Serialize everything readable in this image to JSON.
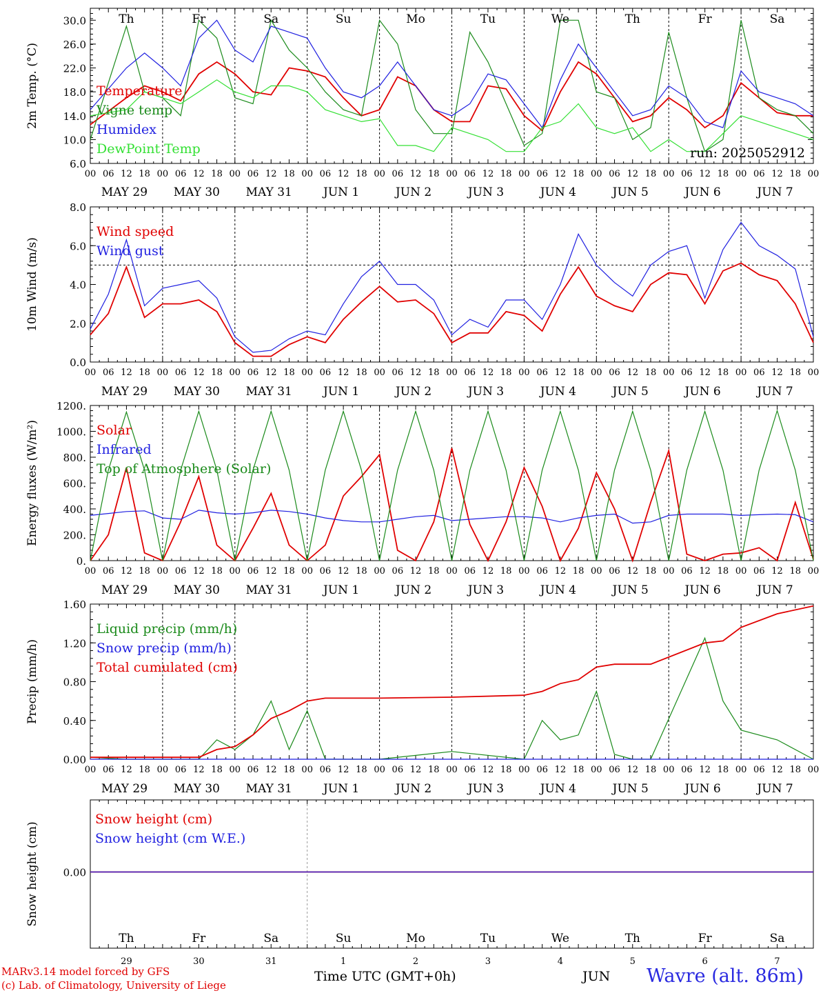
{
  "run_label": "run: 2025052912",
  "days": [
    "Th",
    "Fr",
    "Sa",
    "Su",
    "Mo",
    "Tu",
    "We",
    "Th",
    "Fr",
    "Sa"
  ],
  "weekend_days": [
    2,
    3,
    9
  ],
  "date_labels": [
    "MAY 29",
    "MAY 30",
    "MAY 31",
    "JUN  1",
    "JUN  2",
    "JUN  3",
    "JUN  4",
    "JUN  5",
    "JUN  6",
    "JUN  7"
  ],
  "hour_labels": [
    "00",
    "06",
    "12",
    "18"
  ],
  "day_numbers": [
    "29",
    "30",
    "31",
    "1",
    "2",
    "3",
    "4",
    "5",
    "6",
    "7"
  ],
  "month_label": "JUN",
  "x_axis_title": "Time UTC (GMT+0h)",
  "credits": {
    "line1": "MARv3.14 model forced by GFS",
    "line2": "(c) Lab. of Climatology, University of Liege"
  },
  "station": "Wavre (alt. 86m)",
  "colors": {
    "red": "#e00000",
    "green": "#1a8a1a",
    "blue": "#1f1fe0",
    "lightgreen": "#33e033"
  },
  "chart_data": [
    {
      "type": "line",
      "ylabel": "2m Temp. (°C)",
      "ylim": [
        6,
        32
      ],
      "yticks": [
        "30.0",
        "26.0",
        "22.0",
        "18.0",
        "14.0",
        "10.0",
        "6.0"
      ],
      "ytick_values": [
        30,
        26,
        22,
        18,
        14,
        10,
        6
      ],
      "x_hours": [
        0,
        12,
        18,
        24,
        30,
        36,
        42,
        48,
        54,
        60,
        66,
        72,
        78,
        84,
        90,
        96,
        102,
        108,
        114,
        120,
        126,
        132,
        138,
        144,
        150,
        156,
        162,
        168,
        174,
        180,
        186,
        192,
        198,
        204,
        210,
        216,
        222,
        228,
        234,
        240
      ],
      "series": [
        {
          "name": "Temperature",
          "color": "red",
          "values": [
            12.5,
            17,
            19,
            18,
            16.5,
            21,
            23,
            21,
            18,
            17.5,
            22,
            21.5,
            20.5,
            17,
            14,
            15,
            20.5,
            19,
            15,
            13,
            13,
            19,
            18.5,
            14,
            11.5,
            18,
            23,
            21,
            17,
            13,
            14,
            17,
            15,
            12,
            14,
            19.5,
            17,
            14.5,
            14,
            14
          ]
        },
        {
          "name": "Vigne temp",
          "color": "green",
          "values": [
            10,
            29,
            18,
            17,
            14,
            30,
            27,
            17,
            16,
            30,
            25,
            22,
            18,
            15,
            14,
            30,
            26,
            15,
            11,
            11,
            28,
            23,
            16,
            9,
            11,
            30,
            30,
            18,
            17,
            10,
            12,
            28,
            17,
            8,
            10,
            30,
            17,
            15,
            14,
            11
          ]
        },
        {
          "name": "Humidex",
          "color": "blue",
          "values": [
            15,
            22,
            24.5,
            22,
            19,
            27,
            30,
            25,
            23,
            29,
            28,
            27,
            22,
            18,
            17,
            19,
            23,
            19,
            15,
            14,
            16,
            21,
            20,
            16,
            12,
            20,
            26,
            22,
            18,
            14,
            15,
            19,
            17,
            13,
            12,
            21.5,
            18,
            17,
            16,
            14
          ]
        },
        {
          "name": "DewPoint Temp",
          "color": "lightgreen",
          "values": [
            14,
            15,
            18,
            17,
            16,
            18,
            20,
            18,
            17,
            19,
            19,
            18,
            15,
            14,
            13,
            13.5,
            9,
            9,
            8,
            12,
            11,
            10,
            8,
            8,
            12,
            13,
            16,
            12,
            11,
            12,
            8,
            10,
            8,
            8,
            11,
            14,
            13,
            12,
            11,
            10
          ]
        }
      ]
    },
    {
      "type": "line",
      "ylabel": "10m Wind (m/s)",
      "ylim": [
        0,
        8
      ],
      "yticks": [
        "8.0",
        "6.0",
        "4.0",
        "2.0",
        "0.0"
      ],
      "ytick_values": [
        8,
        6,
        4,
        2,
        0
      ],
      "reference_line": 5,
      "x_hours": [
        0,
        6,
        12,
        18,
        24,
        30,
        36,
        42,
        48,
        54,
        60,
        66,
        72,
        78,
        84,
        90,
        96,
        102,
        108,
        114,
        120,
        126,
        132,
        138,
        144,
        150,
        156,
        162,
        168,
        174,
        180,
        186,
        192,
        198,
        204,
        210,
        216,
        222,
        228,
        234,
        240
      ],
      "series": [
        {
          "name": "Wind speed",
          "color": "red",
          "values": [
            1.4,
            2.5,
            4.9,
            2.3,
            3,
            3,
            3.2,
            2.6,
            1,
            0.3,
            0.3,
            0.9,
            1.3,
            1,
            2.2,
            3.1,
            3.9,
            3.1,
            3.2,
            2.5,
            1,
            1.5,
            1.5,
            2.6,
            2.4,
            1.6,
            3.5,
            4.9,
            3.4,
            2.9,
            2.6,
            4,
            4.6,
            4.5,
            3,
            4.7,
            5.1,
            4.5,
            4.2,
            3,
            1
          ]
        },
        {
          "name": "Wind gust",
          "color": "blue",
          "values": [
            1.7,
            3.5,
            6.3,
            2.9,
            3.8,
            4,
            4.2,
            3.3,
            1.3,
            0.5,
            0.6,
            1.2,
            1.6,
            1.4,
            3,
            4.4,
            5.2,
            4,
            4,
            3.2,
            1.4,
            2.2,
            1.8,
            3.2,
            3.2,
            2.2,
            4,
            6.6,
            5,
            4.1,
            3.4,
            5,
            5.7,
            6,
            3.3,
            5.8,
            7.2,
            6,
            5.5,
            4.8,
            1.3
          ]
        }
      ]
    },
    {
      "type": "line",
      "ylabel": "Energy fluxes (W/m²)",
      "ylim": [
        0,
        1200
      ],
      "yticks": [
        "1200.",
        "1000.",
        "800.",
        "600.",
        "400.",
        "200.",
        "0."
      ],
      "ytick_values": [
        1200,
        1000,
        800,
        600,
        400,
        200,
        0
      ],
      "x_hours": [
        0,
        6,
        12,
        18,
        24,
        30,
        36,
        42,
        48,
        54,
        60,
        66,
        72,
        78,
        84,
        90,
        96,
        102,
        108,
        114,
        120,
        126,
        132,
        138,
        144,
        150,
        156,
        162,
        168,
        174,
        180,
        186,
        192,
        198,
        204,
        210,
        216,
        222,
        228,
        234,
        240
      ],
      "series": [
        {
          "name": "Solar",
          "color": "red",
          "values": [
            0,
            200,
            720,
            60,
            0,
            300,
            650,
            120,
            0,
            250,
            520,
            120,
            0,
            120,
            500,
            650,
            820,
            80,
            0,
            300,
            870,
            280,
            0,
            300,
            720,
            420,
            0,
            250,
            680,
            400,
            0,
            450,
            850,
            50,
            0,
            50,
            60,
            100,
            0,
            450,
            10
          ]
        },
        {
          "name": "Infrared",
          "color": "blue",
          "values": [
            350,
            365,
            380,
            385,
            330,
            320,
            390,
            370,
            360,
            370,
            390,
            380,
            360,
            330,
            310,
            300,
            300,
            320,
            340,
            350,
            310,
            320,
            330,
            340,
            340,
            330,
            300,
            330,
            350,
            360,
            290,
            300,
            350,
            360,
            360,
            360,
            350,
            355,
            360,
            355,
            300
          ]
        },
        {
          "name": "Top of Atmosphere (Solar)",
          "color": "green",
          "values": [
            0,
            700,
            1150,
            700,
            0,
            700,
            1155,
            700,
            0,
            700,
            1155,
            700,
            0,
            700,
            1155,
            700,
            0,
            700,
            1155,
            700,
            0,
            700,
            1155,
            700,
            0,
            700,
            1155,
            700,
            0,
            700,
            1155,
            700,
            0,
            700,
            1155,
            700,
            0,
            700,
            1160,
            700,
            0
          ]
        }
      ]
    },
    {
      "type": "line",
      "ylabel": "Precip (mm/h)",
      "ylim": [
        0,
        1.6
      ],
      "yticks": [
        "1.60",
        "1.20",
        "0.80",
        "0.40",
        "0.00"
      ],
      "ytick_values": [
        1.6,
        1.2,
        0.8,
        0.4,
        0
      ],
      "x_hours": [
        0,
        12,
        24,
        36,
        42,
        48,
        54,
        60,
        66,
        72,
        78,
        84,
        96,
        120,
        144,
        150,
        156,
        162,
        168,
        174,
        180,
        186,
        204,
        210,
        216,
        228,
        240
      ],
      "series": [
        {
          "name": "Liquid precip (mm/h)",
          "color": "green",
          "values": [
            0.02,
            0,
            0,
            0,
            0.2,
            0.1,
            0.25,
            0.6,
            0.1,
            0.5,
            0,
            0,
            0,
            0.08,
            0,
            0.4,
            0.2,
            0.25,
            0.7,
            0.05,
            0,
            0,
            1.25,
            0.6,
            0.3,
            0.2,
            0
          ]
        },
        {
          "name": "Snow precip (mm/h)",
          "color": "blue",
          "values": [
            0,
            0,
            0,
            0,
            0,
            0,
            0,
            0,
            0,
            0,
            0,
            0,
            0,
            0,
            0,
            0,
            0,
            0,
            0,
            0,
            0,
            0,
            0,
            0,
            0,
            0,
            0
          ]
        },
        {
          "name": "Total cumulated (cm)",
          "color": "red",
          "values": [
            0.02,
            0.02,
            0.02,
            0.02,
            0.1,
            0.13,
            0.25,
            0.42,
            0.5,
            0.6,
            0.63,
            0.63,
            0.63,
            0.64,
            0.66,
            0.7,
            0.78,
            0.82,
            0.95,
            0.98,
            0.98,
            0.98,
            1.2,
            1.22,
            1.36,
            1.5,
            1.58
          ]
        }
      ]
    },
    {
      "type": "line",
      "ylabel": "Snow height (cm)",
      "yticks": [
        "0.00"
      ],
      "ytick_values": [
        0
      ],
      "x_hours": [
        0,
        240
      ],
      "series": [
        {
          "name": "Snow height (cm)",
          "color": "red",
          "values": [
            0,
            0
          ]
        },
        {
          "name": "Snow height (cm W.E.)",
          "color": "blue",
          "values": [
            0,
            0
          ]
        }
      ]
    }
  ]
}
